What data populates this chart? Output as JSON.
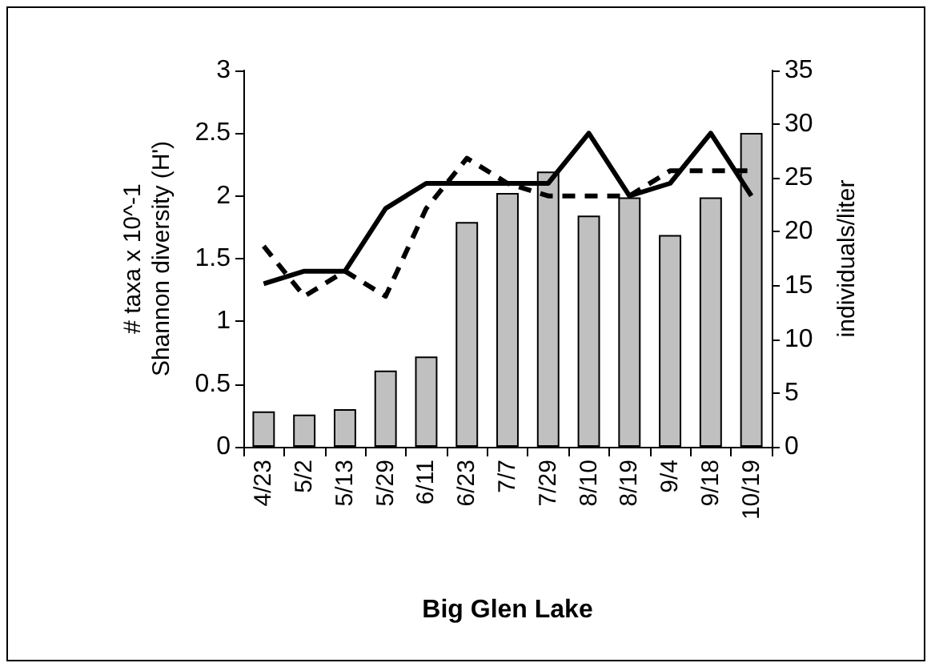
{
  "chart_data": {
    "type": "bar",
    "xlabel": "Big Glen Lake",
    "ylabel": "# taxa x 10^-1\nShannon diversity (H')",
    "y2label": "individuals/liter",
    "categories": [
      "4/23",
      "5/2",
      "5/13",
      "5/29",
      "6/11",
      "6/23",
      "7/7",
      "7/29",
      "8/10",
      "8/19",
      "9/4",
      "9/18",
      "10/19"
    ],
    "series": [
      {
        "axis": "y2",
        "color": "#c0c0c0",
        "values": [
          3.3,
          3.0,
          3.5,
          7.1,
          8.4,
          20.9,
          23.6,
          25.6,
          21.5,
          23.2,
          19.7,
          23.2,
          29.2
        ]
      },
      {
        "type": "line",
        "color": "#000000",
        "line_style": "solid",
        "values": [
          1.3,
          1.4,
          1.4,
          1.9,
          2.1,
          2.1,
          2.1,
          2.1,
          2.5,
          2.0,
          2.1,
          2.5,
          2.0
        ]
      },
      {
        "type": "line",
        "color": "#000000",
        "line_style": "dashed",
        "values": [
          1.6,
          1.2,
          1.4,
          1.2,
          1.9,
          2.3,
          2.1,
          2.0,
          2.0,
          2.0,
          2.2,
          2.2,
          2.2
        ]
      }
    ],
    "ylim": [
      0,
      3
    ],
    "yticks": [
      0,
      0.5,
      1,
      1.5,
      2,
      2.5,
      3
    ],
    "y2lim": [
      0,
      35
    ],
    "y2ticks": [
      0,
      5,
      10,
      15,
      20,
      25,
      30,
      35
    ],
    "grid": false,
    "marker": "none"
  }
}
